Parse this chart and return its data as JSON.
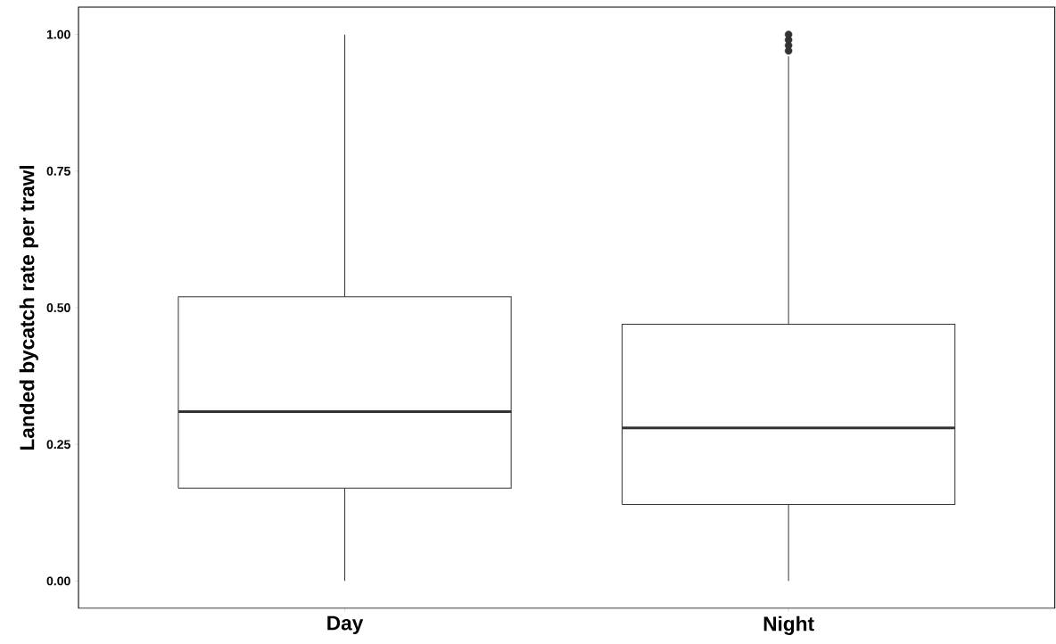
{
  "chart_data": {
    "type": "box",
    "ylabel": "Landed bycatch rate per trawl",
    "categories": [
      "Day",
      "Night"
    ],
    "boxes": [
      {
        "low": 0,
        "q1": 0.17,
        "median": 0.31,
        "q3": 0.52,
        "high": 1.0
      },
      {
        "low": 0,
        "q1": 0.14,
        "median": 0.28,
        "q3": 0.47,
        "high": 0.96,
        "outliers": [
          0.97,
          0.98,
          0.99,
          1.0
        ]
      }
    ],
    "color": "#333333",
    "ylim": [
      -0.05,
      1.05
    ],
    "yticks": [
      {
        "value": 0,
        "label": "0.00"
      },
      {
        "value": 0.25,
        "label": "0.25"
      },
      {
        "value": 0.5,
        "label": "0.50"
      },
      {
        "value": 0.75,
        "label": "0.75"
      },
      {
        "value": 1,
        "label": "1.00"
      }
    ],
    "grid": false
  }
}
